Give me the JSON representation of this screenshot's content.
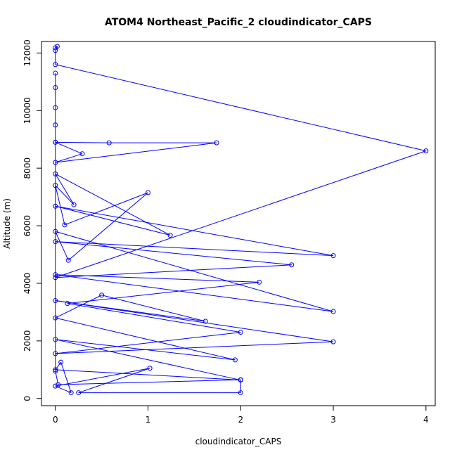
{
  "chart_data": {
    "type": "line",
    "title": "ATOM4 Northeast_Pacific_2 cloudindicator_CAPS",
    "xlabel": "cloudindicator_CAPS",
    "ylabel": "Altitude (m)",
    "xlim": [
      -0.15,
      4.1
    ],
    "ylim": [
      -250,
      12400
    ],
    "xticks": [
      0,
      1,
      2,
      3,
      4
    ],
    "yticks": [
      0,
      2000,
      4000,
      6000,
      8000,
      10000,
      12000
    ],
    "grid": false,
    "series_color": "#0000ff",
    "series": [
      {
        "marker": "open-circle",
        "points": [
          [
            0,
            12180
          ],
          [
            0.02,
            12230
          ],
          [
            0,
            12090
          ],
          [
            0,
            11600
          ],
          [
            4.0,
            8600
          ],
          [
            0,
            4200
          ],
          [
            2.55,
            4640
          ],
          [
            0,
            5450
          ],
          [
            3.0,
            4960
          ],
          [
            0,
            6680
          ],
          [
            1.24,
            5670
          ],
          [
            0,
            7800
          ],
          [
            0.2,
            6730
          ],
          [
            0,
            7400
          ],
          [
            0.1,
            6030
          ],
          [
            1.0,
            7150
          ],
          [
            0.14,
            4800
          ],
          [
            0,
            5800
          ],
          [
            3.0,
            3020
          ],
          [
            0,
            4300
          ],
          [
            2.2,
            4040
          ],
          [
            0.13,
            3300
          ],
          [
            2.0,
            2300
          ],
          [
            0,
            1560
          ],
          [
            3.0,
            1970
          ],
          [
            0,
            3400
          ],
          [
            1.62,
            2680
          ],
          [
            0.5,
            3590
          ],
          [
            0,
            2800
          ],
          [
            1.94,
            1340
          ],
          [
            0,
            2050
          ],
          [
            2.0,
            640
          ],
          [
            0,
            1000
          ],
          [
            0.06,
            1260
          ],
          [
            0.17,
            200
          ],
          [
            0,
            430
          ],
          [
            1.02,
            1050
          ],
          [
            0.25,
            200
          ],
          [
            2.0,
            200
          ],
          [
            2.0,
            650
          ],
          [
            0.03,
            480
          ],
          [
            0,
            950
          ],
          [
            0,
            8900
          ],
          [
            0.58,
            8880
          ],
          [
            1.74,
            8880
          ],
          [
            0,
            8200
          ],
          [
            0.29,
            8500
          ],
          [
            0,
            8900
          ],
          [
            0,
            9500
          ],
          [
            0,
            10100
          ],
          [
            0,
            10800
          ],
          [
            0,
            11300
          ]
        ]
      }
    ]
  }
}
